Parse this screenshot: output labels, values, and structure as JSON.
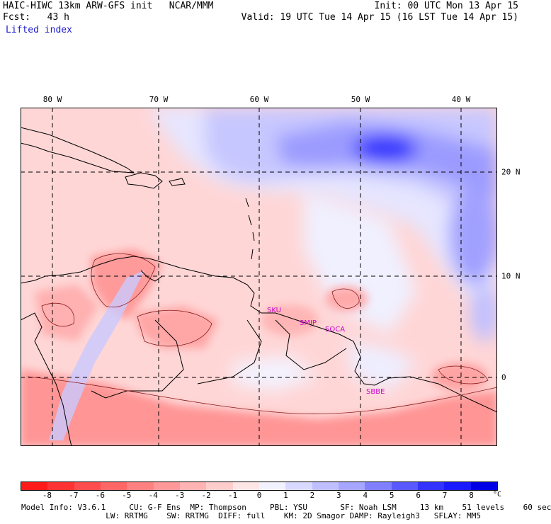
{
  "header": {
    "line1_left": "HAIC-HIWC 13km ARW-GFS init   NCAR/MMM",
    "line2_left": "Fcst:   43 h",
    "field": "Lifted index",
    "line1_right": "Init: 00 UTC Mon 13 Apr 15",
    "line2_right": "Valid: 19 UTC Tue 14 Apr 15 (16 LST Tue 14 Apr 15)"
  },
  "axes": {
    "lon_labels": [
      "80 W",
      "70 W",
      "60 W",
      "50 W",
      "40 W"
    ],
    "lat_labels": [
      "20 N",
      "10 N",
      "0"
    ]
  },
  "stations": [
    "SKU",
    "SMJP",
    "SOCA",
    "SBBE"
  ],
  "colorbar": {
    "ticks": [
      "-8",
      "-7",
      "-6",
      "-5",
      "-4",
      "-3",
      "-2",
      "-1",
      "0",
      "1",
      "2",
      "3",
      "4",
      "5",
      "6",
      "7",
      "8"
    ],
    "unit": "°C",
    "colors": [
      "#ff1a1a",
      "#ff3333",
      "#ff4d4d",
      "#ff6666",
      "#ff8080",
      "#ff9999",
      "#ffb3b3",
      "#ffcccc",
      "#ffe6e6",
      "#f2f2ff",
      "#d9d9ff",
      "#bfbfff",
      "#a6a6ff",
      "#8080ff",
      "#5959ff",
      "#3333ff",
      "#1a1aff",
      "#0000e6"
    ]
  },
  "footer": {
    "line1": "Model Info: V3.6.1     CU: G-F Ens  MP: Thompson     PBL: YSU       SF: Noah LSM     13 km    51 levels    60 sec",
    "line2": "                  LW: RRTMG    SW: RRTMG  DIFF: full    KM: 2D Smagor DAMP: Rayleigh3   SFLAY: MM5"
  }
}
